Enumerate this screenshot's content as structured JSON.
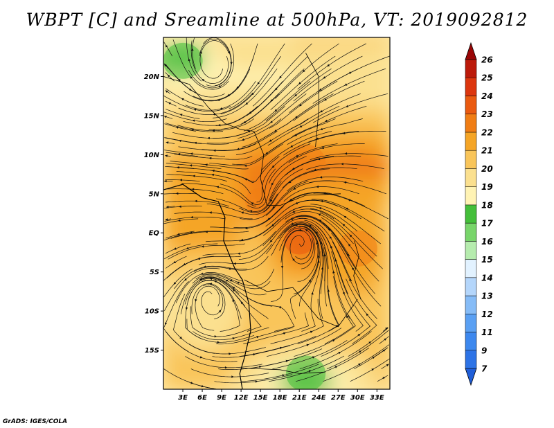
{
  "title": "WBPT [C] and Sreamline at 500hPa, VT: 2019092812",
  "credit": "GrADS: IGES/COLA",
  "map": {
    "lon_range": [
      0,
      35
    ],
    "lat_range": [
      -20,
      25
    ],
    "lon_ticks": [
      {
        "value": 3,
        "label": "3E"
      },
      {
        "value": 6,
        "label": "6E"
      },
      {
        "value": 9,
        "label": "9E"
      },
      {
        "value": 12,
        "label": "12E"
      },
      {
        "value": 15,
        "label": "15E"
      },
      {
        "value": 18,
        "label": "18E"
      },
      {
        "value": 21,
        "label": "21E"
      },
      {
        "value": 24,
        "label": "24E"
      },
      {
        "value": 27,
        "label": "27E"
      },
      {
        "value": 30,
        "label": "30E"
      },
      {
        "value": 33,
        "label": "33E"
      }
    ],
    "lat_ticks": [
      {
        "value": 20,
        "label": "20N"
      },
      {
        "value": 15,
        "label": "15N"
      },
      {
        "value": 10,
        "label": "10N"
      },
      {
        "value": 5,
        "label": "5N"
      },
      {
        "value": 0,
        "label": "EQ"
      },
      {
        "value": -5,
        "label": "5S"
      },
      {
        "value": -10,
        "label": "10S"
      },
      {
        "value": -15,
        "label": "15S"
      }
    ],
    "field_features": [
      {
        "kind": "warm-core",
        "lon": 21,
        "lat": -1,
        "value": 23.6
      },
      {
        "kind": "warm-core",
        "lon": 15,
        "lat": 4,
        "value": 22.6
      },
      {
        "kind": "warm-band",
        "lon": 22,
        "lat": 9,
        "value": 22.3
      },
      {
        "kind": "warm-band",
        "lon": 30,
        "lat": -2,
        "value": 22.8
      },
      {
        "kind": "cool-area",
        "lon": 22,
        "lat": -18,
        "value": 17.4
      },
      {
        "kind": "cool-area",
        "lon": 3,
        "lat": 22,
        "value": 17.8
      }
    ],
    "vortices": [
      {
        "lon": 21,
        "lat": -1
      },
      {
        "lon": 15,
        "lat": 4
      },
      {
        "lon": 7,
        "lat": -8
      },
      {
        "lon": 8,
        "lat": 21
      }
    ]
  },
  "colorbar": {
    "levels": [
      7,
      9,
      11,
      12,
      13,
      14,
      15,
      16,
      17,
      18,
      19,
      20,
      21,
      22,
      23,
      24,
      25,
      26
    ],
    "colors": [
      "#1f5ed8",
      "#2d73e6",
      "#3d88ee",
      "#5aa0f3",
      "#86bcf7",
      "#b4d6fb",
      "#e2f2ff",
      "#b6ecae",
      "#78d56a",
      "#44bf3a",
      "#fff3b4",
      "#fbe08f",
      "#f9c55a",
      "#f5a526",
      "#f07d14",
      "#ea5a10",
      "#dc360e",
      "#bc1a0a",
      "#9a0606"
    ]
  }
}
